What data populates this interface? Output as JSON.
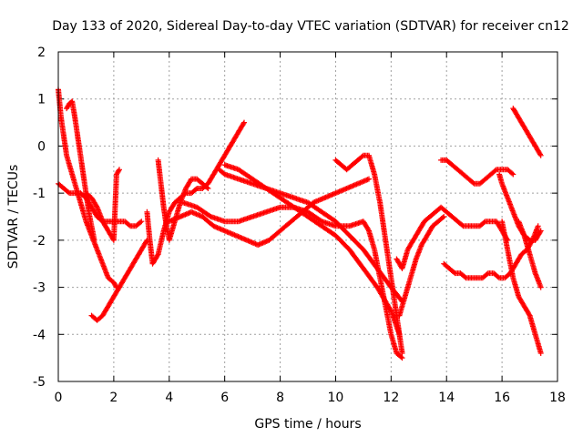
{
  "chart_data": {
    "type": "scatter",
    "title": "Day 133 of 2020, Sidereal Day-to-day VTEC variation (SDTVAR) for receiver cn12",
    "xlabel": "GPS time / hours",
    "ylabel": "SDTVAR / TECUs",
    "xlim": [
      0,
      18
    ],
    "ylim": [
      -5,
      2
    ],
    "xticks": [
      0,
      2,
      4,
      6,
      8,
      10,
      12,
      14,
      16,
      18
    ],
    "yticks": [
      -5,
      -4,
      -3,
      -2,
      -1,
      0,
      1,
      2
    ],
    "grid": true,
    "marker": "+",
    "color": "#ff0000",
    "series": [
      {
        "name": "arc-1",
        "x": [
          0.0,
          0.05,
          0.1,
          0.2,
          0.3,
          0.4,
          0.5,
          0.6,
          0.7,
          0.8,
          0.9,
          1.0,
          1.2,
          1.4,
          1.6,
          1.8,
          2.0,
          2.1
        ],
        "y": [
          1.2,
          0.9,
          0.6,
          0.2,
          -0.2,
          -0.4,
          -0.6,
          -0.8,
          -1.0,
          -1.2,
          -1.4,
          -1.6,
          -1.9,
          -2.2,
          -2.5,
          -2.8,
          -2.9,
          -3.0
        ]
      },
      {
        "name": "arc-2",
        "x": [
          0.3,
          0.4,
          0.5,
          0.6,
          0.7,
          0.8,
          0.9,
          1.0,
          1.1,
          1.2,
          1.3
        ],
        "y": [
          0.8,
          0.9,
          0.95,
          0.6,
          0.2,
          -0.2,
          -0.6,
          -1.0,
          -1.4,
          -1.7,
          -2.0
        ]
      },
      {
        "name": "arc-3",
        "x": [
          0.0,
          0.2,
          0.4,
          0.6,
          0.8,
          1.0,
          1.2,
          1.4,
          1.6,
          1.8,
          2.0,
          2.2,
          2.4,
          2.6,
          2.8,
          3.0
        ],
        "y": [
          -0.8,
          -0.9,
          -1.0,
          -1.0,
          -1.0,
          -1.1,
          -1.3,
          -1.5,
          -1.6,
          -1.6,
          -1.6,
          -1.6,
          -1.6,
          -1.7,
          -1.7,
          -1.6
        ]
      },
      {
        "name": "arc-4",
        "x": [
          1.2,
          1.4,
          1.6,
          1.8,
          2.0,
          2.2,
          2.4,
          2.6,
          2.8,
          3.0,
          3.2
        ],
        "y": [
          -3.6,
          -3.7,
          -3.6,
          -3.4,
          -3.2,
          -3.0,
          -2.8,
          -2.6,
          -2.4,
          -2.2,
          -2.0
        ]
      },
      {
        "name": "arc-5",
        "x": [
          1.0,
          1.2,
          1.4,
          1.6,
          1.8,
          2.0,
          2.1,
          2.2
        ],
        "y": [
          -1.0,
          -1.1,
          -1.3,
          -1.6,
          -1.8,
          -2.0,
          -0.6,
          -0.5
        ]
      },
      {
        "name": "arc-6",
        "x": [
          3.2,
          3.3,
          3.4,
          3.6,
          3.8,
          4.0,
          4.2,
          4.4,
          4.6,
          4.8,
          5.0,
          5.2,
          5.4,
          5.6,
          5.8,
          6.0,
          6.2,
          6.4,
          6.6,
          6.7
        ],
        "y": [
          -1.4,
          -2.0,
          -2.5,
          -2.3,
          -1.8,
          -1.4,
          -1.2,
          -1.1,
          -1.0,
          -1.0,
          -0.9,
          -0.9,
          -0.8,
          -0.6,
          -0.4,
          -0.2,
          0.0,
          0.2,
          0.4,
          0.5
        ]
      },
      {
        "name": "arc-7",
        "x": [
          3.6,
          3.7,
          3.8,
          3.9,
          4.0,
          4.2,
          4.4,
          4.6,
          4.8,
          5.0,
          5.2,
          5.4
        ],
        "y": [
          -0.3,
          -0.8,
          -1.3,
          -1.7,
          -2.0,
          -1.6,
          -1.2,
          -0.9,
          -0.7,
          -0.7,
          -0.8,
          -0.9
        ]
      },
      {
        "name": "arc-8",
        "x": [
          4.0,
          4.4,
          4.8,
          5.2,
          5.6,
          6.0,
          6.4,
          6.8,
          7.2,
          7.6,
          8.0,
          8.4,
          8.8,
          9.2,
          9.6,
          10.0,
          10.4,
          10.8,
          11.2
        ],
        "y": [
          -1.6,
          -1.5,
          -1.4,
          -1.5,
          -1.7,
          -1.8,
          -1.9,
          -2.0,
          -2.1,
          -2.0,
          -1.8,
          -1.6,
          -1.4,
          -1.2,
          -1.1,
          -1.0,
          -0.9,
          -0.8,
          -0.7
        ]
      },
      {
        "name": "arc-9",
        "x": [
          4.5,
          5.0,
          5.5,
          6.0,
          6.5,
          7.0,
          7.5,
          8.0,
          8.5,
          9.0,
          9.5,
          10.0,
          10.5,
          11.0,
          11.2,
          11.4,
          11.6,
          11.8,
          12.0,
          12.2,
          12.4
        ],
        "y": [
          -1.2,
          -1.3,
          -1.5,
          -1.6,
          -1.6,
          -1.5,
          -1.4,
          -1.3,
          -1.3,
          -1.4,
          -1.6,
          -1.7,
          -1.7,
          -1.6,
          -1.8,
          -2.2,
          -2.8,
          -3.4,
          -4.0,
          -4.4,
          -4.5
        ]
      },
      {
        "name": "arc-10",
        "x": [
          5.8,
          6.0,
          6.5,
          7.0,
          7.5,
          8.0,
          8.5,
          9.0,
          9.5,
          10.0,
          10.5,
          11.0,
          11.5,
          12.0,
          12.4
        ],
        "y": [
          -0.5,
          -0.6,
          -0.7,
          -0.8,
          -0.9,
          -1.0,
          -1.1,
          -1.2,
          -1.4,
          -1.6,
          -1.9,
          -2.2,
          -2.6,
          -3.0,
          -3.3
        ]
      },
      {
        "name": "arc-11",
        "x": [
          6.0,
          6.5,
          7.0,
          7.5,
          8.0,
          8.5,
          9.0,
          9.5,
          10.0,
          10.5,
          11.0,
          11.5,
          12.0,
          12.3
        ],
        "y": [
          -0.4,
          -0.5,
          -0.7,
          -0.9,
          -1.1,
          -1.3,
          -1.5,
          -1.7,
          -1.9,
          -2.2,
          -2.6,
          -3.0,
          -3.5,
          -4.0
        ]
      },
      {
        "name": "arc-12",
        "x": [
          10.0,
          10.2,
          10.4,
          10.6,
          10.8,
          11.0,
          11.2,
          11.4,
          11.6,
          11.8,
          12.0,
          12.2,
          12.4
        ],
        "y": [
          -0.3,
          -0.4,
          -0.5,
          -0.4,
          -0.3,
          -0.2,
          -0.2,
          -0.6,
          -1.2,
          -2.0,
          -2.8,
          -3.6,
          -4.4
        ]
      },
      {
        "name": "arc-13",
        "x": [
          12.2,
          12.4,
          12.6,
          12.8,
          13.0,
          13.2,
          13.4,
          13.6,
          13.8,
          14.0,
          14.2,
          14.4,
          14.6,
          14.8,
          15.0,
          15.2,
          15.4,
          15.6,
          15.8,
          16.0,
          16.2
        ],
        "y": [
          -2.4,
          -2.6,
          -2.2,
          -2.0,
          -1.8,
          -1.6,
          -1.5,
          -1.4,
          -1.3,
          -1.4,
          -1.5,
          -1.6,
          -1.7,
          -1.7,
          -1.7,
          -1.7,
          -1.6,
          -1.6,
          -1.6,
          -1.8,
          -2.0
        ]
      },
      {
        "name": "arc-14",
        "x": [
          12.3,
          12.5,
          12.7,
          12.9,
          13.1,
          13.3,
          13.5,
          13.7,
          13.9
        ],
        "y": [
          -3.6,
          -3.2,
          -2.8,
          -2.4,
          -2.1,
          -1.9,
          -1.7,
          -1.6,
          -1.5
        ]
      },
      {
        "name": "arc-15",
        "x": [
          13.8,
          14.0,
          14.2,
          14.4,
          14.6,
          14.8,
          15.0,
          15.2,
          15.4,
          15.6,
          15.8,
          16.0,
          16.2,
          16.4
        ],
        "y": [
          -0.3,
          -0.3,
          -0.4,
          -0.5,
          -0.6,
          -0.7,
          -0.8,
          -0.8,
          -0.7,
          -0.6,
          -0.5,
          -0.5,
          -0.5,
          -0.6
        ]
      },
      {
        "name": "arc-16",
        "x": [
          13.9,
          14.1,
          14.3,
          14.5,
          14.7,
          14.9,
          15.1,
          15.3,
          15.5,
          15.7,
          15.9,
          16.1,
          16.3,
          16.5,
          16.7,
          16.9,
          17.1,
          17.3
        ],
        "y": [
          -2.5,
          -2.6,
          -2.7,
          -2.7,
          -2.8,
          -2.8,
          -2.8,
          -2.8,
          -2.7,
          -2.7,
          -2.8,
          -2.8,
          -2.7,
          -2.5,
          -2.3,
          -2.2,
          -2.0,
          -1.7
        ]
      },
      {
        "name": "arc-17",
        "x": [
          15.9,
          16.0,
          16.2,
          16.4,
          16.6,
          16.8,
          17.0,
          17.2,
          17.4
        ],
        "y": [
          -0.6,
          -0.8,
          -1.1,
          -1.4,
          -1.7,
          -1.9,
          -2.0,
          -2.0,
          -1.8
        ]
      },
      {
        "name": "arc-18",
        "x": [
          16.0,
          16.2,
          16.4,
          16.6,
          16.8,
          17.0,
          17.2,
          17.4
        ],
        "y": [
          -1.6,
          -2.2,
          -2.8,
          -3.2,
          -3.4,
          -3.6,
          -4.0,
          -4.4
        ]
      },
      {
        "name": "arc-19",
        "x": [
          16.4,
          16.6,
          16.8,
          17.0,
          17.2,
          17.4
        ],
        "y": [
          0.8,
          0.6,
          0.4,
          0.2,
          0.0,
          -0.2
        ]
      },
      {
        "name": "arc-20",
        "x": [
          16.6,
          16.8,
          17.0,
          17.2,
          17.4
        ],
        "y": [
          -1.6,
          -1.9,
          -2.3,
          -2.7,
          -3.0
        ]
      }
    ]
  }
}
